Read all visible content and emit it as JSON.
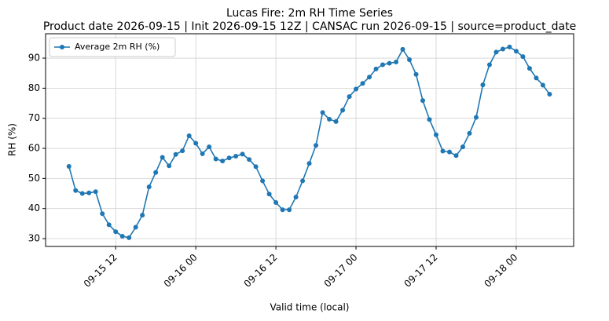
{
  "chart_data": {
    "type": "line",
    "title": "Lucas Fire: 2m RH Time Series",
    "subtitle": "Product date 2026-09-15 | Init 2026-09-15 12Z | CANSAC run 2026-09-15 | source=product_date",
    "x_label": "Valid time (local)",
    "y_label": "RH (%)",
    "x": [
      "09-15 05",
      "09-15 06",
      "09-15 07",
      "09-15 08",
      "09-15 09",
      "09-15 10",
      "09-15 11",
      "09-15 12",
      "09-15 13",
      "09-15 14",
      "09-15 15",
      "09-15 16",
      "09-15 17",
      "09-15 18",
      "09-15 19",
      "09-15 20",
      "09-15 21",
      "09-15 22",
      "09-15 23",
      "09-16 00",
      "09-16 01",
      "09-16 02",
      "09-16 03",
      "09-16 04",
      "09-16 05",
      "09-16 06",
      "09-16 07",
      "09-16 08",
      "09-16 09",
      "09-16 10",
      "09-16 11",
      "09-16 12",
      "09-16 13",
      "09-16 14",
      "09-16 15",
      "09-16 16",
      "09-16 17",
      "09-16 18",
      "09-16 19",
      "09-16 20",
      "09-16 21",
      "09-16 22",
      "09-16 23",
      "09-17 00",
      "09-17 01",
      "09-17 02",
      "09-17 03",
      "09-17 04",
      "09-17 05",
      "09-17 06",
      "09-17 07",
      "09-17 08",
      "09-17 09",
      "09-17 10",
      "09-17 11",
      "09-17 12",
      "09-17 13",
      "09-17 14",
      "09-17 15",
      "09-17 16",
      "09-17 17",
      "09-17 18",
      "09-17 19",
      "09-17 20",
      "09-17 21",
      "09-17 22",
      "09-17 23",
      "09-18 00",
      "09-18 01",
      "09-18 02",
      "09-18 03",
      "09-18 04",
      "09-18 05"
    ],
    "series": [
      {
        "name": "Average 2m RH (%)",
        "color": "#1f77b4",
        "values": [
          54,
          46,
          45,
          45.2,
          45.6,
          38.3,
          34.6,
          32.3,
          30.8,
          30.3,
          33.8,
          37.8,
          47.2,
          52,
          57,
          54.2,
          58,
          59.2,
          64.2,
          61.7,
          58.2,
          60.5,
          56.5,
          55.8,
          56.8,
          57.4,
          58.1,
          56.3,
          53.9,
          49.2,
          44.8,
          42,
          39.6,
          39.6,
          43.8,
          49.2,
          55,
          61,
          71.9,
          69.7,
          68.9,
          72.7,
          77.2,
          79.7,
          81.6,
          83.7,
          86.4,
          87.8,
          88.3,
          88.7,
          92.9,
          89.5,
          84.6,
          75.9,
          69.6,
          64.5,
          59.1,
          58.8,
          57.6,
          60.5,
          65,
          70.3,
          81.1,
          87.8,
          92,
          93,
          93.7,
          92.3,
          90.5,
          86.6,
          83.4,
          81,
          78
        ]
      }
    ],
    "xlim": [
      "09-15 01:30",
      "09-18 08:36"
    ],
    "xticks": [
      "09-15 12",
      "09-16 00",
      "09-16 12",
      "09-17 00",
      "09-17 12",
      "09-18 00"
    ],
    "ylim": [
      27.4,
      98.1
    ],
    "yticks": [
      30,
      40,
      50,
      60,
      70,
      80,
      90
    ],
    "grid": true,
    "legend": "upper left"
  }
}
